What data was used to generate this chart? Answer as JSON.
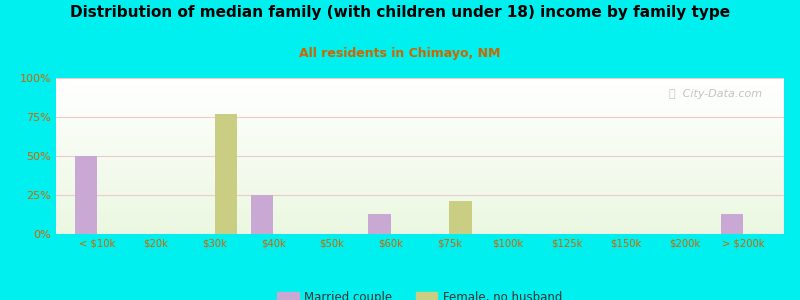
{
  "title": "Distribution of median family (with children under 18) income by family type",
  "subtitle": "All residents in Chimayo, NM",
  "categories": [
    "< $10k",
    "$20k",
    "$30k",
    "$40k",
    "$50k",
    "$60k",
    "$75k",
    "$100k",
    "$125k",
    "$150k",
    "$200k",
    "> $200k"
  ],
  "married_couple": [
    50,
    0,
    0,
    25,
    0,
    13,
    0,
    0,
    0,
    0,
    0,
    13
  ],
  "female_no_husband": [
    0,
    0,
    77,
    0,
    0,
    0,
    21,
    0,
    0,
    0,
    0,
    0
  ],
  "married_color": "#c9a8d4",
  "female_color": "#cace82",
  "background_color": "#00efef",
  "title_color": "#000000",
  "subtitle_color": "#cc6600",
  "axis_color": "#cc6600",
  "grid_color": "#f0c8d0",
  "ylim": [
    0,
    100
  ],
  "bar_width": 0.38,
  "watermark": "ⓘ  City-Data.com"
}
